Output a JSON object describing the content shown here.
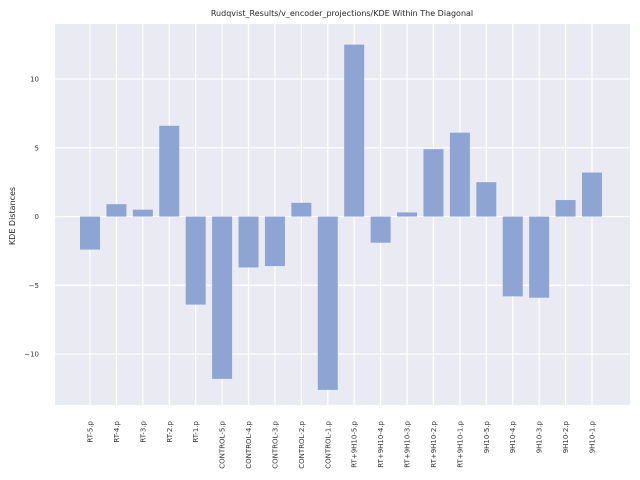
{
  "chart_data": {
    "type": "bar",
    "title": "Rudqvist_Results/v_encoder_projections/KDE Within The Diagonal",
    "xlabel": "",
    "ylabel": "KDE Distances",
    "categories": [
      "RT-5.p",
      "RT-4.p",
      "RT-3.p",
      "RT-2.p",
      "RT-1.p",
      "CONTROL-5.p",
      "CONTROL-4.p",
      "CONTROL-3.p",
      "CONTROL-2.p",
      "CONTROL-1.p",
      "RT+9H10-5.p",
      "RT+9H10-4.p",
      "RT+9H10-3.p",
      "RT+9H10-2.p",
      "RT+9H10-1.p",
      "9H10-5.p",
      "9H10-4.p",
      "9H10-3.p",
      "9H10-2.p",
      "9H10-1.p"
    ],
    "values": [
      -2.4,
      0.9,
      0.5,
      6.6,
      -6.4,
      -11.8,
      -3.7,
      -3.6,
      1.0,
      -12.6,
      12.5,
      -1.9,
      0.3,
      4.9,
      6.1,
      2.5,
      -5.8,
      -5.9,
      1.2,
      3.2
    ],
    "yticks": [
      -10,
      -5,
      0,
      5,
      10
    ],
    "ylim": [
      -13.7,
      14.0
    ],
    "grid": true,
    "bar_color": "#8ea5d3",
    "background_color": "#eaeaf2",
    "grid_color": "#ffffff"
  }
}
